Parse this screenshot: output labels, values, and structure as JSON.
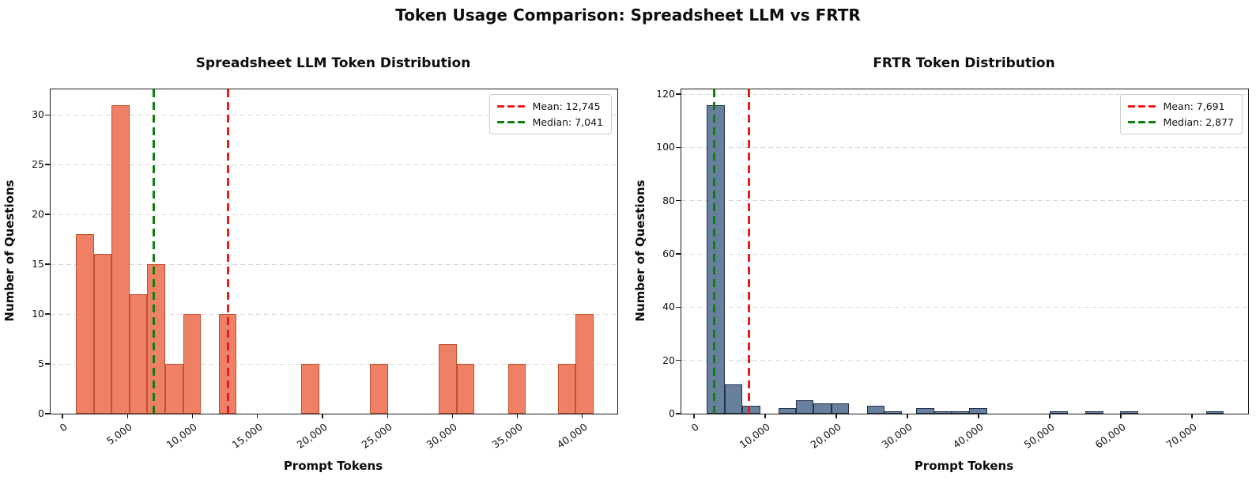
{
  "figure": {
    "suptitle": "Token Usage Comparison: Spreadsheet LLM vs FRTR"
  },
  "chart_data": [
    {
      "type": "bar",
      "title": "Spreadsheet LLM Token Distribution",
      "xlabel": "Prompt Tokens",
      "ylabel": "Number of Questions",
      "legend_position": "upper right",
      "grid": "horizontal dashed",
      "xlim": [
        -912,
        42688
      ],
      "ylim": [
        0,
        32.55
      ],
      "xticks": [
        0,
        5000,
        10000,
        15000,
        20000,
        25000,
        30000,
        35000,
        40000
      ],
      "yticks": [
        0,
        5,
        10,
        15,
        20,
        25,
        30
      ],
      "bin_width": 1375,
      "bars": [
        {
          "start": 1030,
          "count": 18
        },
        {
          "start": 2405,
          "count": 16
        },
        {
          "start": 3780,
          "count": 31
        },
        {
          "start": 5155,
          "count": 12
        },
        {
          "start": 6530,
          "count": 15
        },
        {
          "start": 7905,
          "count": 5
        },
        {
          "start": 9280,
          "count": 10
        },
        {
          "start": 12030,
          "count": 10
        },
        {
          "start": 18370,
          "count": 5
        },
        {
          "start": 23655,
          "count": 5
        },
        {
          "start": 28955,
          "count": 7
        },
        {
          "start": 30330,
          "count": 5
        },
        {
          "start": 34280,
          "count": 5
        },
        {
          "start": 38110,
          "count": 5
        },
        {
          "start": 39485,
          "count": 10
        }
      ],
      "mean": {
        "value": 12745,
        "label": "Mean: 12,745",
        "color": "#ec1a1a"
      },
      "median": {
        "value": 7041,
        "label": "Median: 7,041",
        "color": "#0f7f0f"
      },
      "bar_fill": "#ee8165",
      "bar_edge": "#c4502d"
    },
    {
      "type": "bar",
      "title": "FRTR Token Distribution",
      "xlabel": "Prompt Tokens",
      "ylabel": "Number of Questions",
      "legend_position": "upper right",
      "grid": "horizontal dashed",
      "xlim": [
        -1778,
        77889
      ],
      "ylim": [
        0,
        121.8
      ],
      "xticks": [
        0,
        10000,
        20000,
        30000,
        40000,
        50000,
        60000,
        70000
      ],
      "yticks": [
        0,
        20,
        40,
        60,
        80,
        100,
        120
      ],
      "bin_width": 2490,
      "bars": [
        {
          "start": 1815,
          "count": 116
        },
        {
          "start": 4305,
          "count": 11
        },
        {
          "start": 6795,
          "count": 3
        },
        {
          "start": 11835,
          "count": 2
        },
        {
          "start": 14325,
          "count": 5
        },
        {
          "start": 16815,
          "count": 4
        },
        {
          "start": 19305,
          "count": 4
        },
        {
          "start": 24285,
          "count": 3
        },
        {
          "start": 26775,
          "count": 1
        },
        {
          "start": 31250,
          "count": 2
        },
        {
          "start": 33740,
          "count": 1
        },
        {
          "start": 36230,
          "count": 1
        },
        {
          "start": 38720,
          "count": 2
        },
        {
          "start": 50050,
          "count": 1
        },
        {
          "start": 55030,
          "count": 1
        },
        {
          "start": 59900,
          "count": 1
        },
        {
          "start": 71990,
          "count": 1
        }
      ],
      "mean": {
        "value": 7691,
        "label": "Mean: 7,691",
        "color": "#ec1a1a"
      },
      "median": {
        "value": 2877,
        "label": "Median: 2,877",
        "color": "#0f7f0f"
      },
      "bar_fill": "#66809e",
      "bar_edge": "#233249"
    }
  ]
}
